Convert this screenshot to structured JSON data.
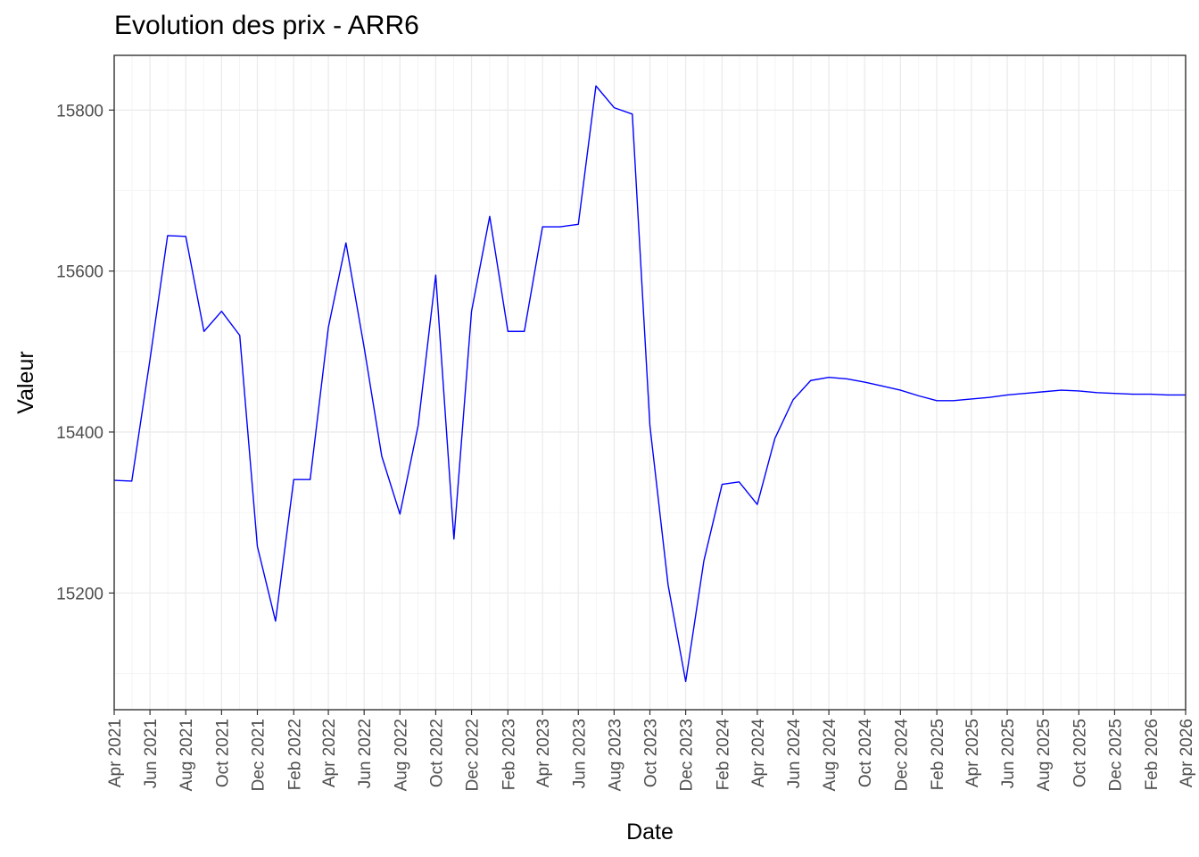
{
  "chart_data": {
    "type": "line",
    "title": "Evolution des prix - ARR6",
    "xlabel": "Date",
    "ylabel": "Valeur",
    "xlim": [
      "2021-04-01",
      "2026-04-01"
    ],
    "ylim": [
      15055,
      15868
    ],
    "y_ticks": [
      15200,
      15400,
      15600,
      15800
    ],
    "x_tick_labels": [
      "Apr 2021",
      "Jun 2021",
      "Aug 2021",
      "Oct 2021",
      "Dec 2021",
      "Feb 2022",
      "Apr 2022",
      "Jun 2022",
      "Aug 2022",
      "Oct 2022",
      "Dec 2022",
      "Feb 2023",
      "Apr 2023",
      "Jun 2023",
      "Aug 2023",
      "Oct 2023",
      "Dec 2023",
      "Feb 2024",
      "Apr 2024",
      "Jun 2024",
      "Aug 2024",
      "Oct 2024",
      "Dec 2024",
      "Feb 2025",
      "Apr 2025",
      "Jun 2025",
      "Aug 2025",
      "Oct 2025",
      "Dec 2025",
      "Feb 2026",
      "Apr 2026"
    ],
    "grid": true,
    "series": [
      {
        "color": "#0000ff",
        "x": [
          "2021-04-01",
          "2021-05-01",
          "2021-06-01",
          "2021-07-01",
          "2021-08-01",
          "2021-09-01",
          "2021-10-01",
          "2021-11-01",
          "2021-12-01",
          "2022-01-01",
          "2022-02-01",
          "2022-03-01",
          "2022-04-01",
          "2022-05-01",
          "2022-06-01",
          "2022-07-01",
          "2022-08-01",
          "2022-09-01",
          "2022-10-01",
          "2022-11-01",
          "2022-12-01",
          "2023-01-01",
          "2023-02-01",
          "2023-03-01",
          "2023-04-01",
          "2023-05-01",
          "2023-06-01",
          "2023-07-01",
          "2023-08-01",
          "2023-09-01",
          "2023-10-01",
          "2023-11-01",
          "2023-12-01",
          "2024-01-01",
          "2024-02-01",
          "2024-03-01",
          "2024-04-01",
          "2024-05-01",
          "2024-06-01",
          "2024-07-01",
          "2024-08-01",
          "2024-09-01",
          "2024-10-01",
          "2024-11-01",
          "2024-12-01",
          "2025-01-01",
          "2025-02-01",
          "2025-03-01",
          "2025-04-01",
          "2025-05-01",
          "2025-06-01",
          "2025-07-01",
          "2025-08-01",
          "2025-09-01",
          "2025-10-01",
          "2025-11-01",
          "2025-12-01",
          "2026-01-01",
          "2026-02-01",
          "2026-03-01",
          "2026-04-01"
        ],
        "values": [
          15340,
          15339,
          15490,
          15644,
          15643,
          15525,
          15550,
          15520,
          15258,
          15165,
          15341,
          15341,
          15530,
          15635,
          15505,
          15370,
          15298,
          15408,
          15595,
          15267,
          15550,
          15668,
          15525,
          15525,
          15655,
          15655,
          15658,
          15830,
          15803,
          15795,
          15408,
          15210,
          15090,
          15240,
          15335,
          15338,
          15310,
          15392,
          15440,
          15464,
          15468,
          15466,
          15462,
          15457,
          15452,
          15445,
          15439,
          15439,
          15441,
          15443,
          15446,
          15448,
          15450,
          15452,
          15451,
          15449,
          15448,
          15447,
          15447,
          15446,
          15446
        ]
      }
    ]
  }
}
